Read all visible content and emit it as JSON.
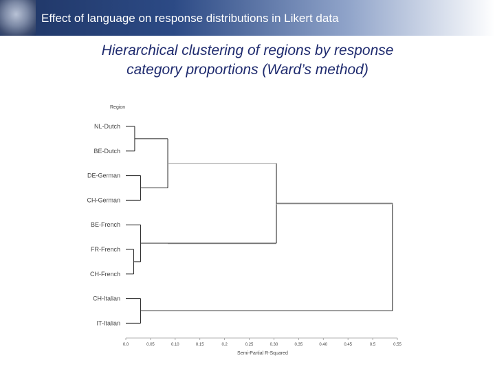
{
  "slide": {
    "header_title": "Effect of language on response distributions in Likert data",
    "title_line1": "Hierarchical clustering of regions by response",
    "title_line2": "category proportions (Ward’s method)"
  },
  "dendrogram": {
    "label_header": "Region",
    "leaves": [
      "NL-Dutch",
      "BE-Dutch",
      "DE-German",
      "CH-German",
      "BE-French",
      "FR-French",
      "CH-French",
      "CH-Italian",
      "IT-Italian"
    ],
    "axis_title": "Semi-Partial R-Squared",
    "ticks": [
      "0.0",
      "0.05",
      "0.10",
      "0.15",
      "0.2",
      "0.25",
      "0.30",
      "0.35",
      "0.40",
      "0.45",
      "0.5",
      "0.55"
    ],
    "axis_min": 0,
    "axis_max": 0.55,
    "merges": [
      {
        "a": "NL-Dutch",
        "b": "BE-Dutch",
        "height": 0.018
      },
      {
        "a": "DE-German",
        "b": "CH-German",
        "height": 0.03
      },
      {
        "a": "NL-Dutch+BE-Dutch",
        "b": "DE-German+CH-German",
        "height": 0.085
      },
      {
        "a": "FR-French",
        "b": "CH-French",
        "height": 0.016
      },
      {
        "a": "BE-French",
        "b": "FR-French+CH-French",
        "height": 0.03
      },
      {
        "a": "Dutch+German",
        "b": "French",
        "height": 0.305
      },
      {
        "a": "CH-Italian",
        "b": "IT-Italian",
        "height": 0.03
      },
      {
        "a": "Dutch+German+French",
        "b": "Italian",
        "height": 0.54
      }
    ],
    "line_color": "#222222",
    "faint_line_color": "#cccccc"
  }
}
